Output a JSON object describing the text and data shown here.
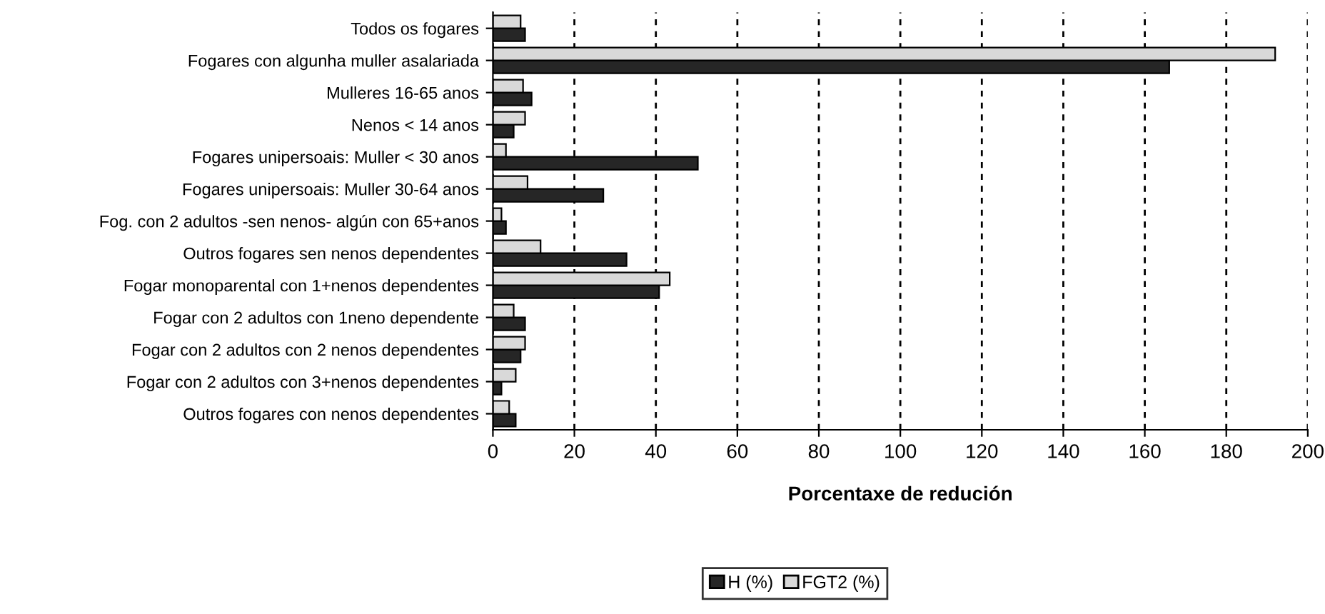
{
  "chart_data": {
    "type": "bar",
    "orientation": "horizontal",
    "xlabel": "Porcentaxe de redución",
    "categories": [
      "Todos os fogares",
      "Fogares con algunha muller asalariada",
      "Mulleres 16-65 anos",
      "Nenos < 14 anos",
      "Fogares unipersoais: Muller < 30 anos",
      "Fogares unipersoais: Muller 30-64 anos",
      "Fog. con 2 adultos -sen nenos- algún con 65+anos",
      "Outros fogares sen nenos dependentes",
      "Fogar monoparental con 1+nenos dependentes",
      "Fogar con 2 adultos con 1neno dependente",
      "Fogar con 2 adultos con 2 nenos dependentes",
      "Fogar con 2 adultos con 3+nenos dependentes",
      "Outros fogares con nenos dependentes"
    ],
    "series": [
      {
        "name": "H (%)",
        "color": "#262626",
        "values": [
          7.9,
          166,
          9.5,
          5.1,
          50.3,
          27.1,
          3.2,
          32.8,
          40.8,
          7.9,
          6.8,
          2.1,
          5.6
        ]
      },
      {
        "name": "FGT2 (%)",
        "color": "#d9d9d9",
        "values": [
          6.8,
          192,
          7.4,
          7.9,
          3.2,
          8.5,
          2.1,
          11.7,
          43.4,
          5.1,
          7.9,
          5.6,
          4.0
        ]
      }
    ],
    "xlim": [
      0,
      200
    ],
    "xticks": [
      0,
      20,
      40,
      60,
      80,
      100,
      120,
      140,
      160,
      180,
      200
    ],
    "grid": "x",
    "legend": "bottom"
  }
}
